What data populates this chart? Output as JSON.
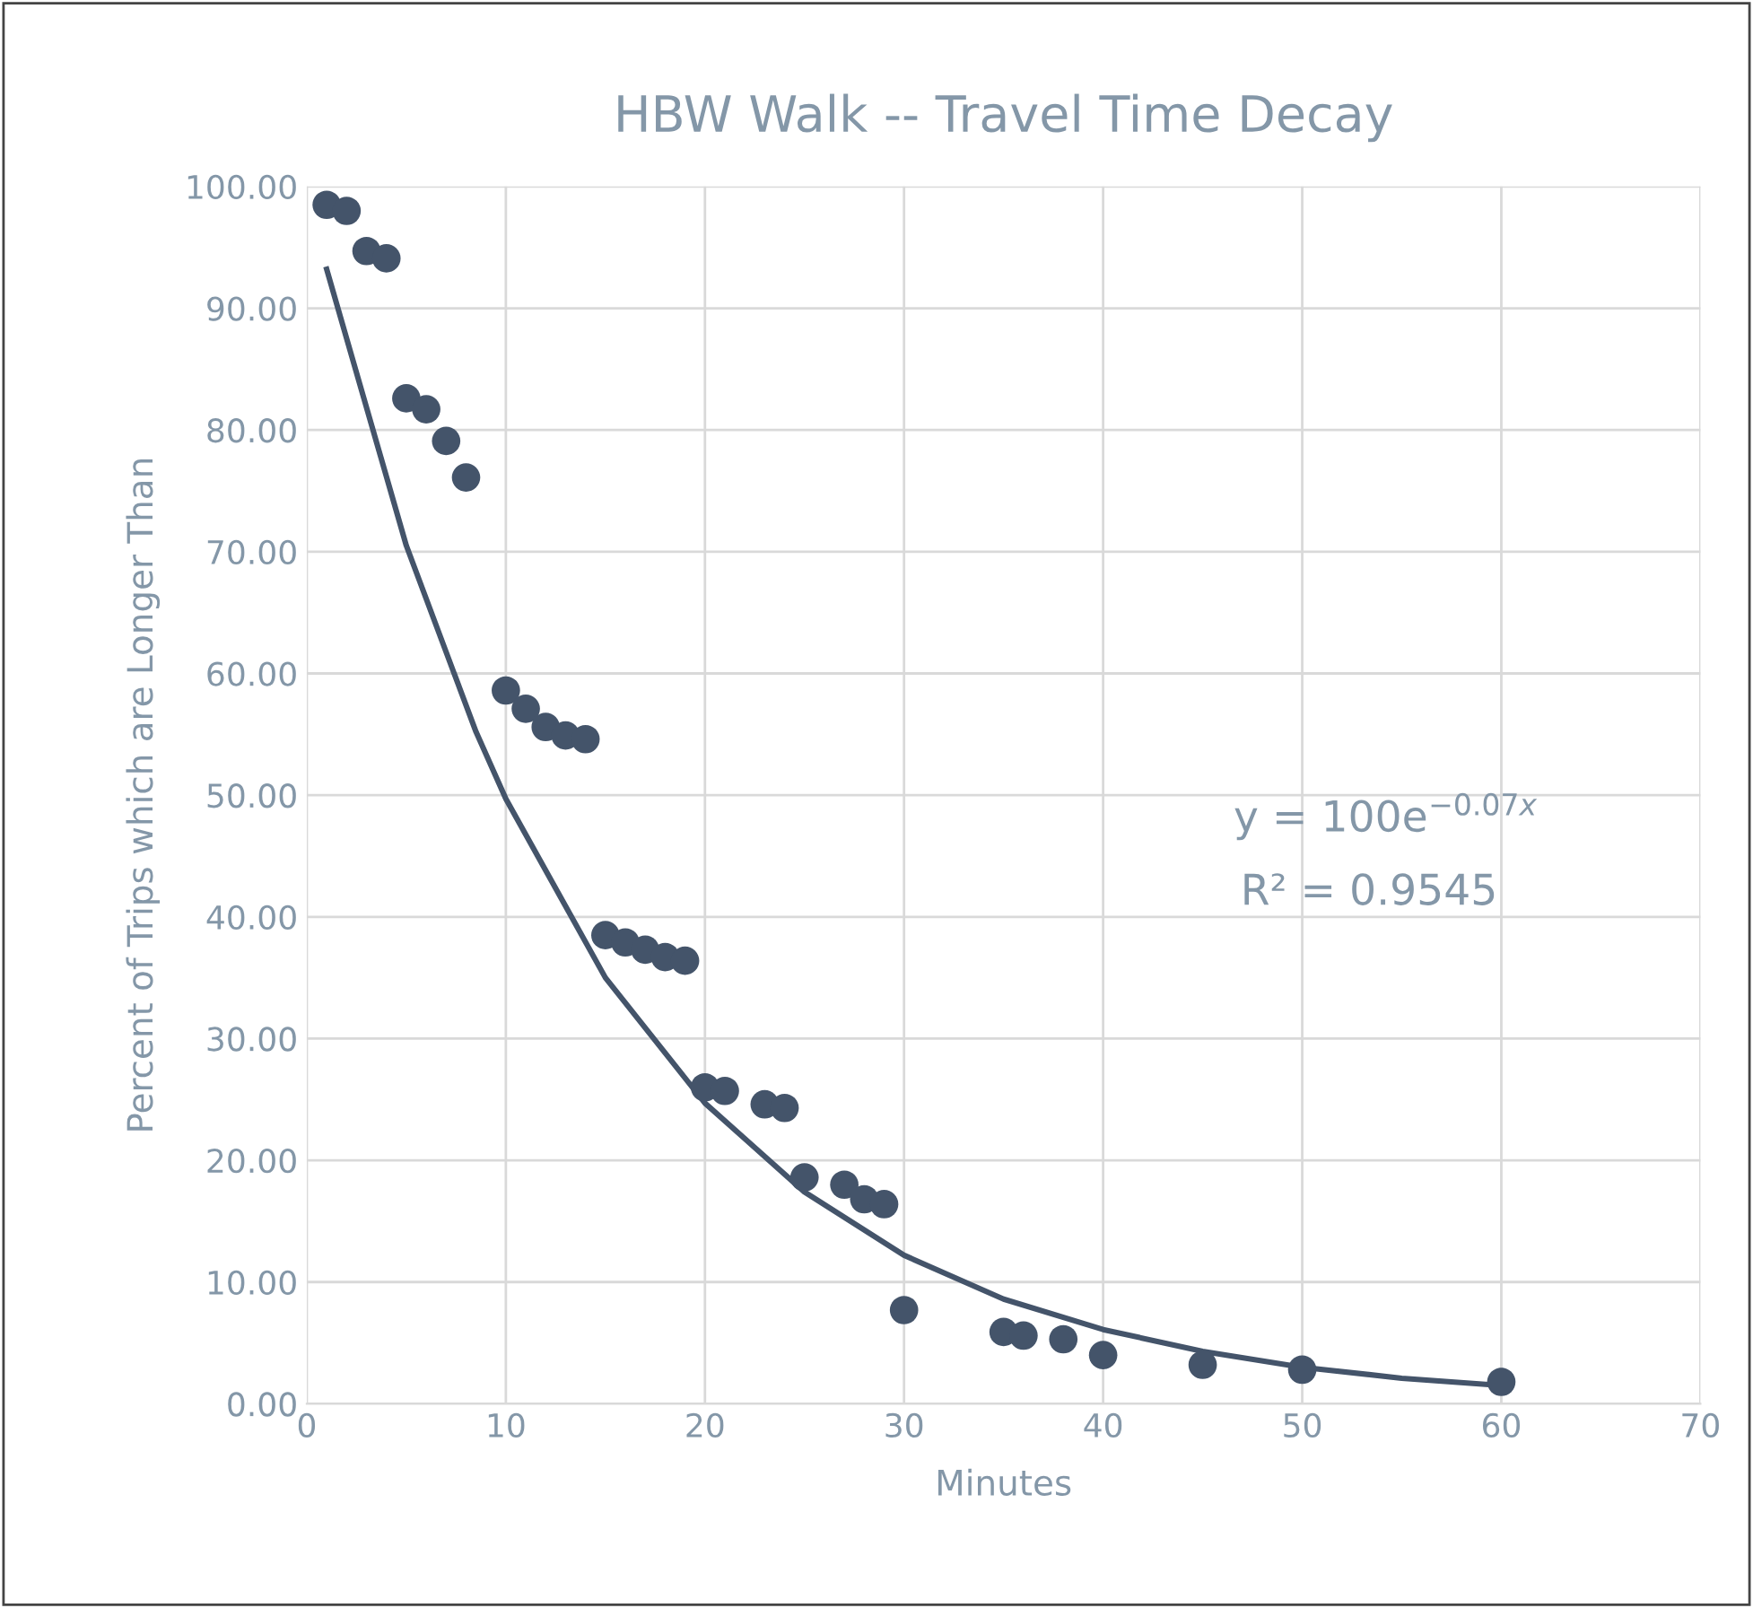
{
  "chart_data": {
    "type": "scatter",
    "title": "HBW Walk -- Travel Time Decay",
    "xlabel": "Minutes",
    "ylabel": "Percent of Trips which are Longer Than",
    "series": [
      {
        "color": "#44546a",
        "marker": "circle",
        "x": [
          1,
          2,
          3,
          4,
          5,
          6,
          7,
          8,
          10,
          11,
          12,
          13,
          14,
          15,
          16,
          17,
          18,
          19,
          20,
          21,
          23,
          24,
          25,
          27,
          28,
          29,
          30,
          35,
          36,
          38,
          40,
          45,
          50,
          60
        ],
        "values": [
          98.5,
          98.0,
          94.7,
          94.1,
          82.6,
          81.7,
          79.1,
          76.1,
          58.6,
          57.1,
          55.6,
          54.9,
          54.6,
          38.5,
          37.9,
          37.3,
          36.7,
          36.4,
          26.0,
          25.7,
          24.6,
          24.3,
          18.6,
          18.0,
          16.8,
          16.4,
          7.7,
          5.9,
          5.6,
          5.3,
          4.0,
          3.2,
          2.8,
          1.8
        ]
      },
      {
        "type": "line",
        "color": "#44546a",
        "marker": "none",
        "x": [
          1,
          5,
          8.5,
          10,
          15,
          20,
          25,
          30,
          35,
          40,
          45,
          50,
          55,
          60
        ],
        "values": [
          93.2,
          70.5,
          55.2,
          49.7,
          35.0,
          24.7,
          17.4,
          12.2,
          8.6,
          6.1,
          4.3,
          3.0,
          2.1,
          1.5
        ]
      }
    ],
    "annotations": [
      "y = 100e$^{−0.07x}$",
      "R² = 0.9545"
    ],
    "xlim": [
      0,
      70
    ],
    "xticks": [
      0,
      10,
      20,
      30,
      40,
      50,
      60,
      70
    ],
    "ylim": [
      0,
      100
    ],
    "yticks": [
      {
        "value": 0,
        "label": "0.00"
      },
      {
        "value": 10,
        "label": "10.00"
      },
      {
        "value": 20,
        "label": "20.00"
      },
      {
        "value": 30,
        "label": "30.00"
      },
      {
        "value": 40,
        "label": "40.00"
      },
      {
        "value": 50,
        "label": "50.00"
      },
      {
        "value": 60,
        "label": "60.00"
      },
      {
        "value": 70,
        "label": "70.00"
      },
      {
        "value": 80,
        "label": "80.00"
      },
      {
        "value": 90,
        "label": "90.00"
      },
      {
        "value": 100,
        "label": "100.00"
      }
    ],
    "grid": true
  }
}
